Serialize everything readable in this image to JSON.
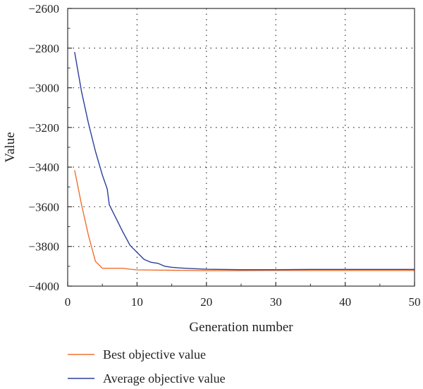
{
  "chart_data": {
    "type": "line",
    "title": "",
    "xlabel": "Generation number",
    "ylabel": "Value",
    "xlim": [
      0,
      50
    ],
    "ylim": [
      -4000,
      -2600
    ],
    "xticks": [
      0,
      10,
      20,
      30,
      40,
      50
    ],
    "yticks": [
      -2600,
      -2800,
      -3000,
      -3200,
      -3400,
      -3600,
      -3800,
      -4000
    ],
    "xtick_labels": [
      "0",
      "10",
      "20",
      "30",
      "40",
      "50"
    ],
    "ytick_labels": [
      "−2600",
      "−2800",
      "−3000",
      "−3200",
      "−3400",
      "−3600",
      "−3800",
      "−4000"
    ],
    "grid": "dotted",
    "legend_position": "bottom",
    "series": [
      {
        "name": "Best objective value",
        "color": "#f07030",
        "x": [
          1,
          2,
          3,
          4,
          5,
          6,
          7,
          8,
          9,
          10,
          12,
          15,
          20,
          25,
          30,
          35,
          40,
          45,
          50
        ],
        "y": [
          -3415,
          -3590,
          -3745,
          -3875,
          -3910,
          -3910,
          -3910,
          -3910,
          -3915,
          -3918,
          -3919,
          -3920,
          -3922,
          -3922,
          -3921,
          -3921,
          -3921,
          -3921,
          -3921
        ]
      },
      {
        "name": "Average objective value",
        "color": "#2a3f9a",
        "x": [
          1,
          2,
          3,
          4,
          5,
          5.7,
          6,
          7,
          8,
          9,
          10,
          11,
          12,
          13,
          14,
          15,
          16,
          18,
          20,
          25,
          30,
          35,
          40,
          45,
          50
        ],
        "y": [
          -2820,
          -3020,
          -3180,
          -3320,
          -3440,
          -3510,
          -3590,
          -3660,
          -3730,
          -3795,
          -3830,
          -3865,
          -3880,
          -3885,
          -3900,
          -3905,
          -3908,
          -3912,
          -3915,
          -3917,
          -3917,
          -3916,
          -3916,
          -3916,
          -3916
        ]
      }
    ]
  }
}
